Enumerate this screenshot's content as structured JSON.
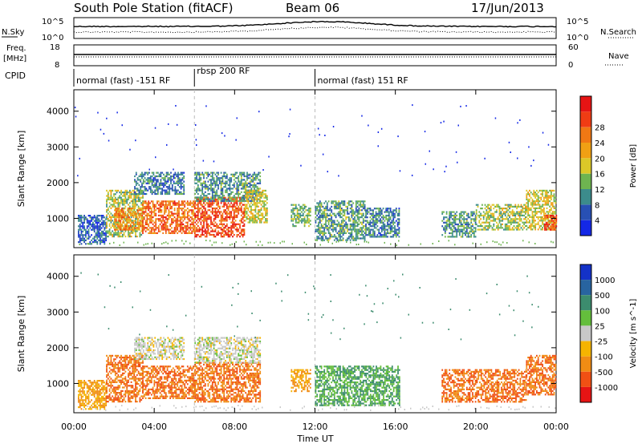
{
  "header": {
    "station": "South Pole Station (fitACF)",
    "beam": "Beam 06",
    "date": "17/Jun/2013"
  },
  "left_labels": {
    "nsky": "N.Sky",
    "freq": "Freq.",
    "freq_unit": "[MHz]",
    "cpid": "CPID"
  },
  "right_labels": {
    "nsearch": "N.Search",
    "nave": "Nave"
  },
  "noise_ticks_left": [
    "10^5",
    "10^0"
  ],
  "noise_ticks_right": [
    "10^5",
    "10^0"
  ],
  "freq_ticks": [
    "18",
    "8"
  ],
  "nave_ticks": [
    "60",
    "0"
  ],
  "cpid_segments": [
    {
      "label": "normal (fast) -151 RF",
      "start_hour": 0
    },
    {
      "label": "rbsp 200 RF",
      "start_hour": 6
    },
    {
      "label": "normal (fast) 151 RF",
      "start_hour": 12
    }
  ],
  "x_axis": {
    "label": "Time UT",
    "ticks": [
      "00:00",
      "04:00",
      "08:00",
      "12:00",
      "16:00",
      "20:00",
      "00:00"
    ]
  },
  "y_axis": {
    "label": "Slant Range [km]",
    "ticks": [
      "1000",
      "2000",
      "3000",
      "4000"
    ]
  },
  "chart_data": [
    {
      "type": "heatmap",
      "title": "",
      "xlabel": "Time UT",
      "ylabel": "Slant Range [km]",
      "xlim": [
        0,
        24
      ],
      "ylim": [
        180,
        4600
      ],
      "colorbar": {
        "label": "Power [dB]",
        "ticks": [
          "4",
          "8",
          "12",
          "16",
          "20",
          "24",
          "28"
        ],
        "range": [
          0,
          32
        ],
        "colors": [
          "#1428e6",
          "#2850b4",
          "#3c8c8c",
          "#6eb450",
          "#dcc828",
          "#f0a014",
          "#f07814",
          "#f03c14",
          "#e61414"
        ]
      },
      "regions": [
        {
          "t0": 0.2,
          "t1": 1.6,
          "r0": 300,
          "r1": 1100,
          "value": 6
        },
        {
          "t0": 1.6,
          "t1": 3.4,
          "r0": 500,
          "r1": 1800,
          "value": 14
        },
        {
          "t0": 2.0,
          "t1": 3.4,
          "r0": 700,
          "r1": 1300,
          "value": 22
        },
        {
          "t0": 3.0,
          "t1": 5.5,
          "r0": 1700,
          "r1": 2300,
          "value": 8
        },
        {
          "t0": 3.4,
          "t1": 6.0,
          "r0": 600,
          "r1": 1500,
          "value": 24
        },
        {
          "t0": 6.0,
          "t1": 8.5,
          "r0": 500,
          "r1": 1600,
          "value": 26
        },
        {
          "t0": 6.0,
          "t1": 9.3,
          "r0": 1500,
          "r1": 2300,
          "value": 10
        },
        {
          "t0": 8.5,
          "t1": 9.6,
          "r0": 900,
          "r1": 1800,
          "value": 16
        },
        {
          "t0": 10.8,
          "t1": 11.8,
          "r0": 800,
          "r1": 1400,
          "value": 12
        },
        {
          "t0": 12.0,
          "t1": 14.5,
          "r0": 400,
          "r1": 1500,
          "value": 10
        },
        {
          "t0": 14.5,
          "t1": 16.2,
          "r0": 500,
          "r1": 1300,
          "value": 8
        },
        {
          "t0": 18.3,
          "t1": 20.0,
          "r0": 500,
          "r1": 1200,
          "value": 10
        },
        {
          "t0": 20.0,
          "t1": 22.5,
          "r0": 700,
          "r1": 1400,
          "value": 14
        },
        {
          "t0": 22.5,
          "t1": 24.0,
          "r0": 700,
          "r1": 1800,
          "value": 16
        },
        {
          "t0": 23.4,
          "t1": 24.0,
          "r0": 700,
          "r1": 1100,
          "value": 26
        }
      ]
    },
    {
      "type": "heatmap",
      "title": "",
      "xlabel": "Time UT",
      "ylabel": "Slant Range [km]",
      "xlim": [
        0,
        24
      ],
      "ylim": [
        180,
        4600
      ],
      "colorbar": {
        "label": "Velocity [m s^-1]",
        "ticks": [
          "1000",
          "500",
          "100",
          "25",
          "-25",
          "-100",
          "-500",
          "-1000"
        ],
        "colors": [
          "#1432c8",
          "#2864a0",
          "#3c8c6e",
          "#64be3c",
          "#c8c8c8",
          "#f5b400",
          "#f08c14",
          "#f05014",
          "#e61414"
        ]
      },
      "regions": [
        {
          "t0": 0.2,
          "t1": 1.6,
          "r0": 300,
          "r1": 1100,
          "value": -100
        },
        {
          "t0": 1.6,
          "t1": 3.4,
          "r0": 500,
          "r1": 1800,
          "value": -500
        },
        {
          "t0": 3.0,
          "t1": 5.5,
          "r0": 1700,
          "r1": 2300,
          "value": 0
        },
        {
          "t0": 3.4,
          "t1": 6.0,
          "r0": 600,
          "r1": 1500,
          "value": -500
        },
        {
          "t0": 6.0,
          "t1": 9.3,
          "r0": 500,
          "r1": 1600,
          "value": -500
        },
        {
          "t0": 6.0,
          "t1": 9.3,
          "r0": 1600,
          "r1": 2300,
          "value": 0
        },
        {
          "t0": 10.8,
          "t1": 11.8,
          "r0": 800,
          "r1": 1400,
          "value": -100
        },
        {
          "t0": 12.0,
          "t1": 16.2,
          "r0": 400,
          "r1": 1500,
          "value": 100
        },
        {
          "t0": 18.3,
          "t1": 22.5,
          "r0": 500,
          "r1": 1400,
          "value": -500
        },
        {
          "t0": 22.5,
          "t1": 24.0,
          "r0": 700,
          "r1": 1800,
          "value": -500
        }
      ]
    }
  ]
}
